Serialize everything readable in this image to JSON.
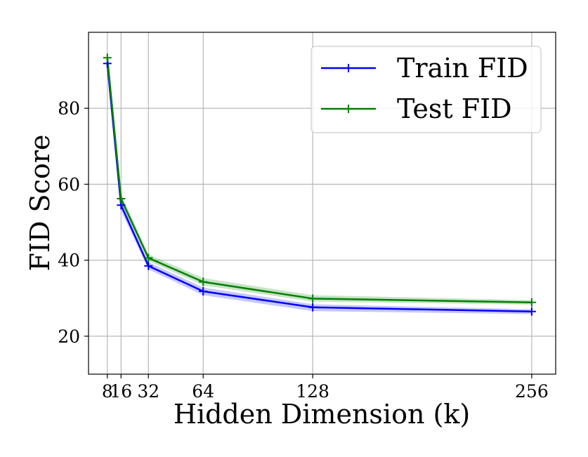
{
  "chart_data": {
    "type": "line",
    "title": "",
    "xlabel": "Hidden Dimension (k)",
    "ylabel": "FID Score",
    "x": [
      8,
      16,
      32,
      64,
      128,
      256
    ],
    "xticks": [
      8,
      16,
      32,
      64,
      128,
      256
    ],
    "xtick_labels": [
      "8",
      "16",
      "32",
      "64",
      "128",
      "256"
    ],
    "yticks": [
      20,
      40,
      60,
      80
    ],
    "ytick_labels": [
      "20",
      "40",
      "60",
      "80"
    ],
    "xlim": [
      -3,
      270
    ],
    "ylim": [
      10,
      100
    ],
    "grid": true,
    "legend_position": "top-right",
    "series": [
      {
        "name": "Train FID",
        "color": "#0000ff",
        "values": [
          91.8,
          54.5,
          38.5,
          31.8,
          27.6,
          26.5
        ],
        "band_low": [
          90.8,
          53.0,
          37.6,
          30.8,
          26.6,
          25.8
        ],
        "band_high": [
          93.0,
          55.6,
          39.5,
          32.8,
          28.4,
          27.1
        ]
      },
      {
        "name": "Test FID",
        "color": "#008000",
        "values": [
          93.3,
          56.2,
          40.6,
          34.3,
          29.9,
          28.9
        ],
        "band_low": [
          92.2,
          55.2,
          39.8,
          33.4,
          29.1,
          28.3
        ],
        "band_high": [
          94.5,
          57.4,
          41.5,
          35.3,
          30.8,
          29.5
        ]
      }
    ]
  }
}
